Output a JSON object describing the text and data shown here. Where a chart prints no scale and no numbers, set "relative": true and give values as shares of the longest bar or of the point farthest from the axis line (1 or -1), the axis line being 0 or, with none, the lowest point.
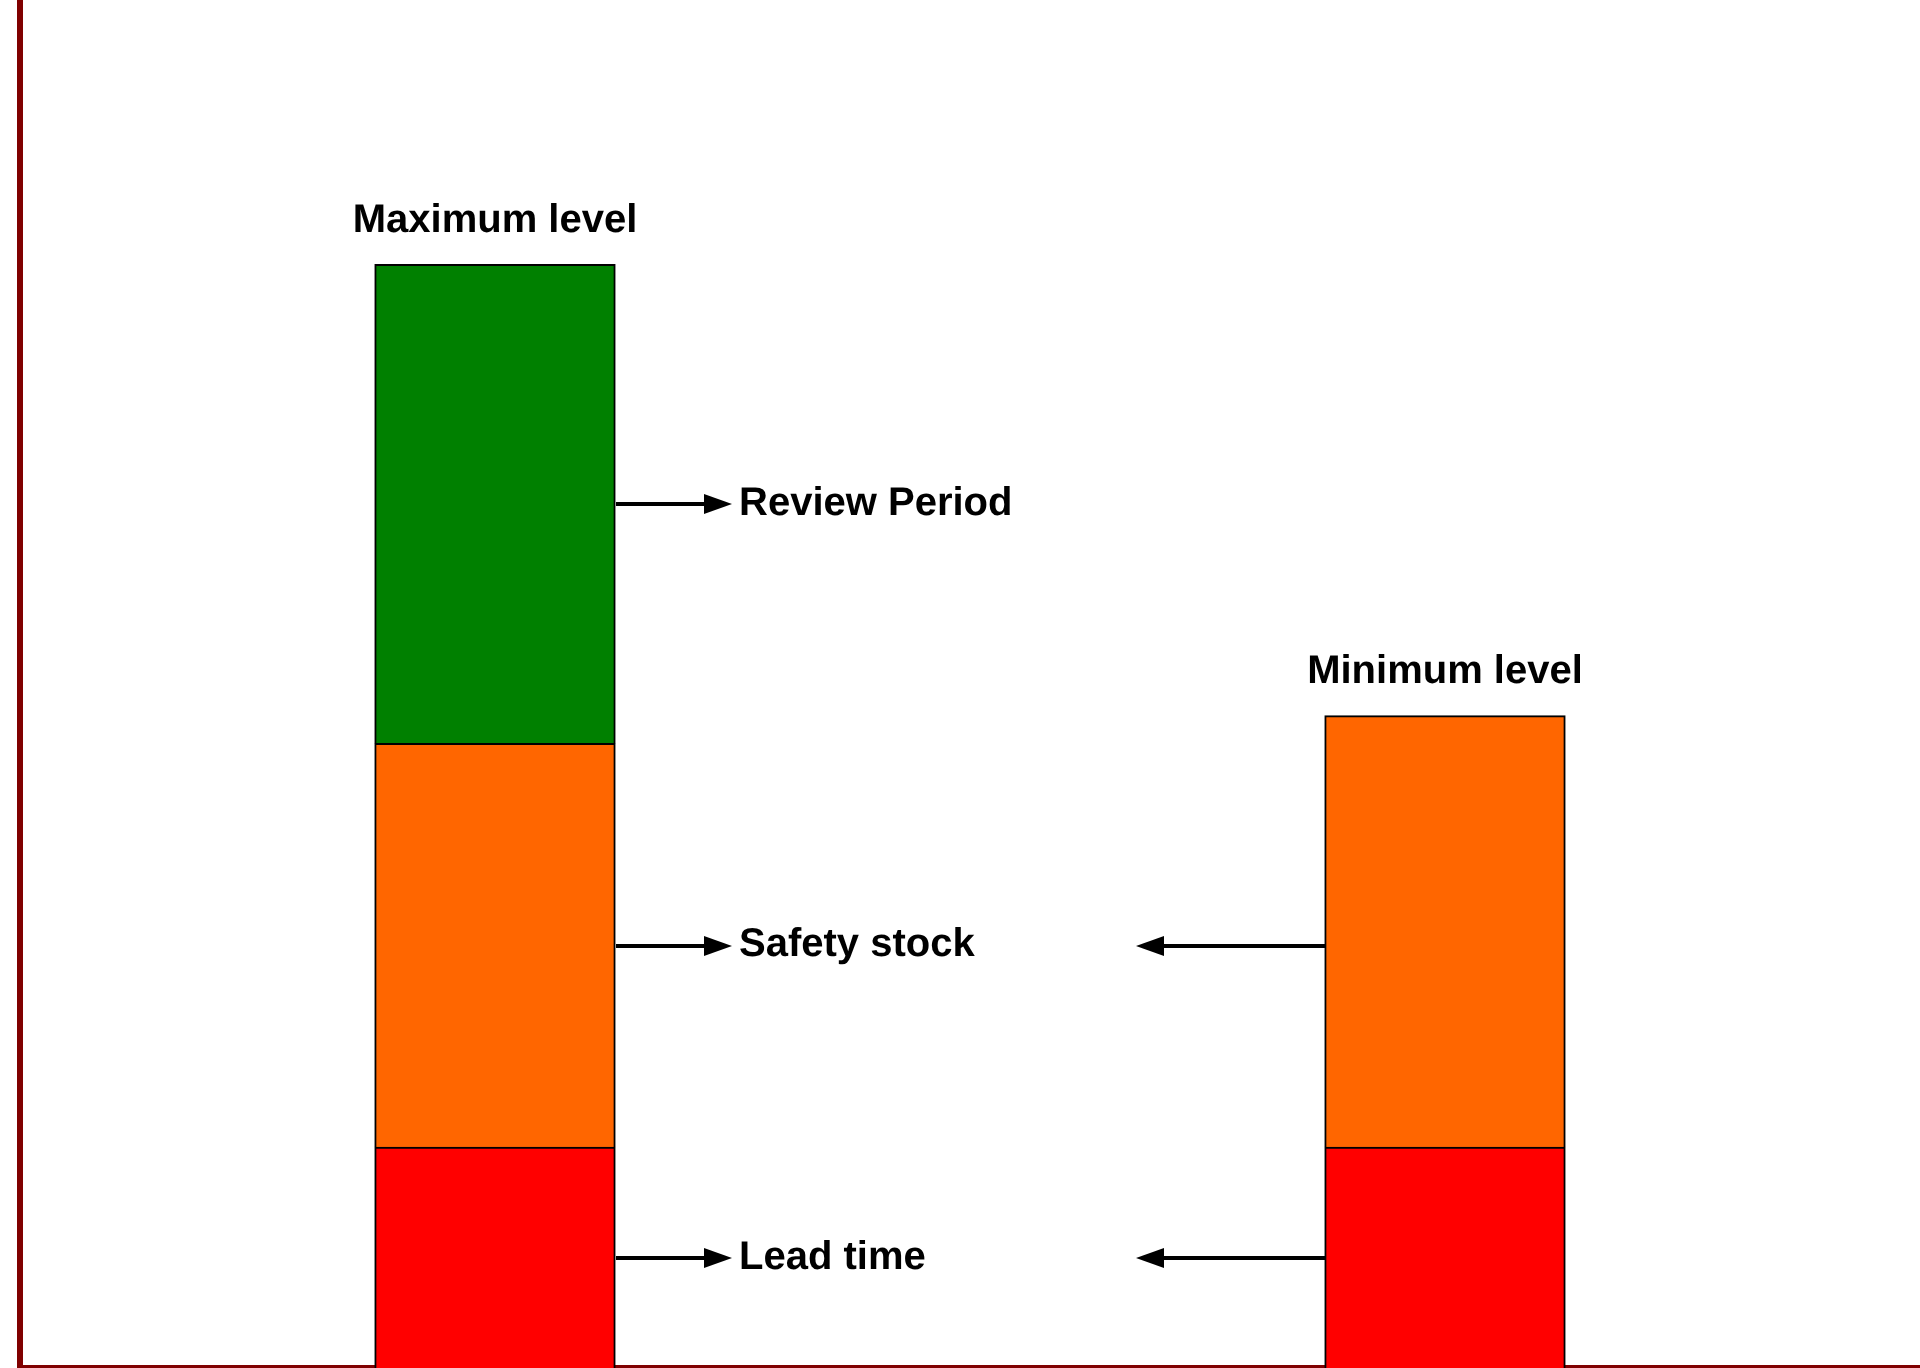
{
  "chart_data": {
    "type": "bar",
    "relative": true,
    "stacked": true,
    "categories": [
      null,
      null
    ],
    "series": [
      {
        "name": "Lead time",
        "color": "#ff0000",
        "values": [
          0.2,
          0.2
        ]
      },
      {
        "name": "Safety stock",
        "color": "#ff6600",
        "values": [
          0.366,
          0.391
        ]
      },
      {
        "name": "Review Period",
        "color": "#008000",
        "values": [
          0.434,
          null
        ]
      }
    ],
    "annotations": [
      "Maximum level",
      "Minimum level"
    ],
    "grid": false,
    "legend": false
  }
}
